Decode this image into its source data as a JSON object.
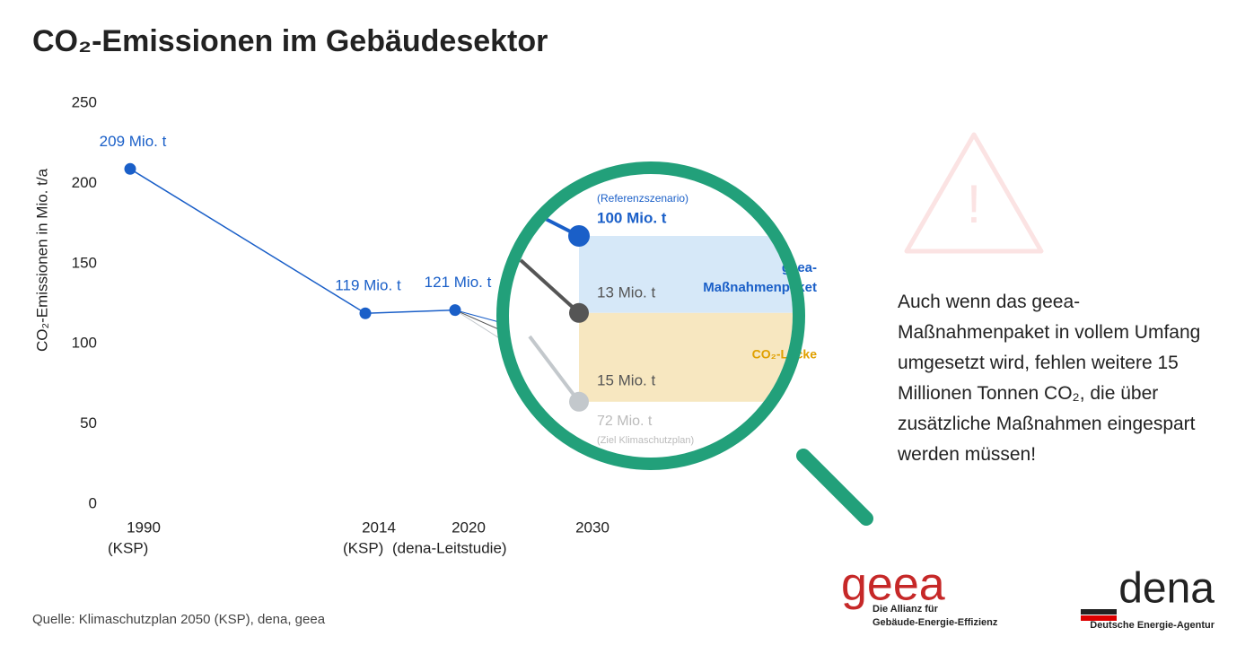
{
  "chart_data": {
    "type": "line",
    "title": "CO₂-Emissionen im Gebäudesektor",
    "y_label": "CO₂-Emissionen in Mio. t/a",
    "categories": [
      "1990",
      "2014",
      "2020",
      "2030"
    ],
    "category_notes": [
      "(KSP)",
      "(KSP)",
      "(dena-Leitstudie)",
      null
    ],
    "series": [
      {
        "name": "CO₂-Emissionen",
        "color": "#1a5fc8",
        "values": [
          209,
          119,
          121,
          null
        ],
        "value_labels": [
          "209 Mio. t",
          "119 Mio. t",
          "121 Mio. t",
          null
        ]
      }
    ],
    "ylim": [
      0,
      250
    ],
    "yticks": [
      0,
      50,
      100,
      150,
      200,
      250
    ],
    "scenarios": [
      {
        "name": "(Referenzszenario)",
        "value": 100,
        "value_label": "100 Mio. t",
        "color": "#1a5fc8"
      },
      {
        "value": 87,
        "color": "#555555"
      },
      {
        "name": "(Ziel Klimaschutzplan)",
        "value": 72,
        "value_label": "72 Mio. t",
        "color": "#c3c8cc"
      }
    ],
    "bands": [
      {
        "name": "geea-Maßnahmenpaket",
        "value": 13,
        "value_label": "13 Mio. t",
        "color": "#d6e8f8"
      },
      {
        "name": "CO₂-Lücke",
        "value": 15,
        "value_label": "15 Mio. t",
        "color": "#f7e7c0"
      }
    ],
    "note": "Auch wenn das geea-Maßnahmenpaket in vollem Umfang umgesetzt wird, fehlen weitere 15 Millionen Tonnen CO₂, die über zusätzliche Maßnahmen eingespart werden müssen!",
    "source": "Quelle: Klimaschutzplan 2050 (KSP), dena, geea",
    "logos": {
      "geea": "geea",
      "geea_sub1": "Die Allianz für",
      "geea_sub2": "Gebäude-Energie-Effizienz",
      "dena": "dena",
      "dena_sub": "Deutsche Energie-Agentur"
    }
  }
}
